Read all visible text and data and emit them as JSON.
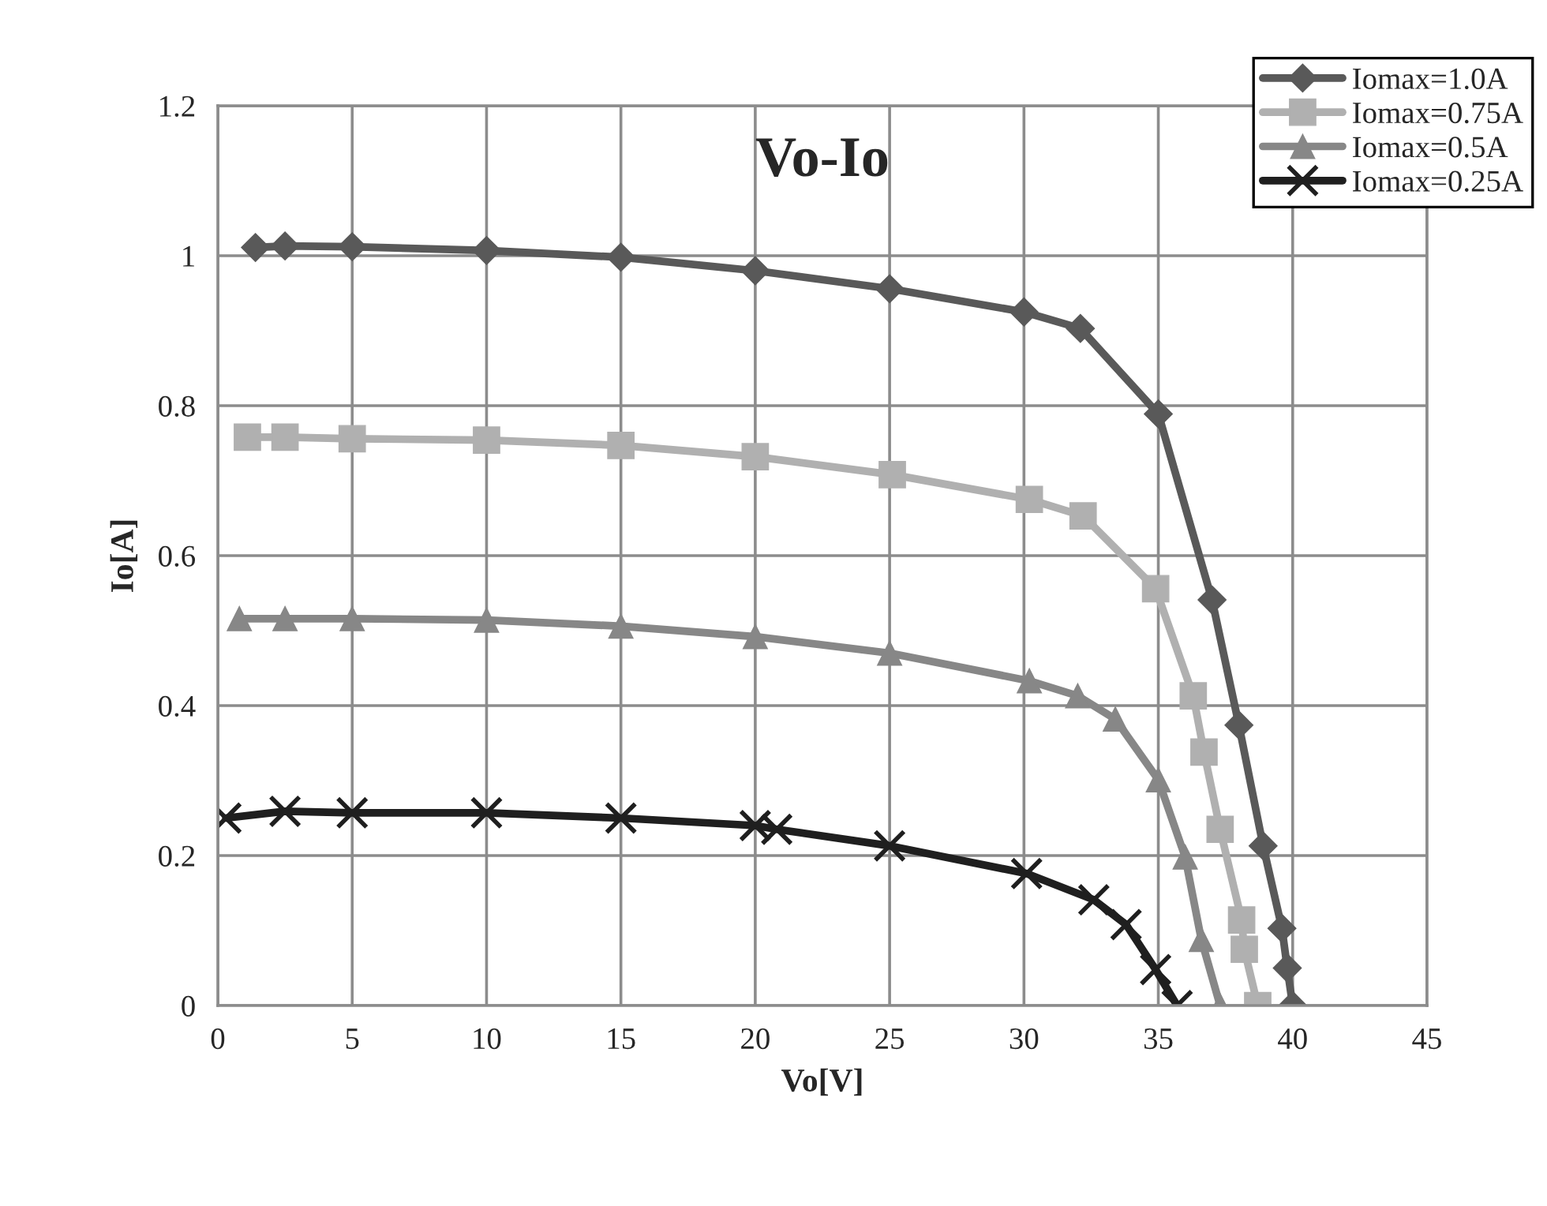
{
  "chart_data": {
    "type": "line",
    "title": "Vo-Io",
    "xlabel": "Vo[V]",
    "ylabel": "Io[A]",
    "xlim": [
      0,
      45
    ],
    "xticks": [
      0,
      5,
      10,
      15,
      20,
      25,
      30,
      35,
      40,
      45
    ],
    "ylim": [
      0,
      1.2
    ],
    "yticks": [
      0,
      0.2,
      0.4,
      0.6,
      0.8,
      1,
      1.2
    ],
    "grid": true,
    "legend": "top right",
    "line_style": "solid",
    "series": [
      {
        "name": "Iomax=1.0A",
        "color": "#595959",
        "marker": "diamond",
        "x": [
          1.4,
          2.5,
          5,
          10,
          15,
          20,
          25,
          30,
          32.1,
          35,
          37.0,
          38.0,
          38.9,
          39.6,
          39.8,
          40.0
        ],
        "values": [
          1.011,
          1.013,
          1.012,
          1.007,
          0.998,
          0.98,
          0.956,
          0.925,
          0.903,
          0.789,
          0.541,
          0.374,
          0.213,
          0.103,
          0.05,
          0
        ]
      },
      {
        "name": "Iomax=0.75A",
        "color": "#b0b0b0",
        "marker": "square",
        "x": [
          1.1,
          2.5,
          5,
          10,
          15,
          20,
          25.1,
          30.2,
          32.2,
          34.9,
          36.3,
          36.7,
          37.3,
          38.1,
          38.2,
          38.7
        ],
        "values": [
          0.758,
          0.758,
          0.756,
          0.754,
          0.747,
          0.732,
          0.708,
          0.675,
          0.653,
          0.556,
          0.413,
          0.338,
          0.235,
          0.114,
          0.075,
          0
        ]
      },
      {
        "name": "Iomax=0.5A",
        "color": "#878787",
        "marker": "triangle",
        "x": [
          0.8,
          2.5,
          5,
          10,
          15,
          20,
          25.0,
          30.2,
          32.0,
          33.4,
          35.0,
          36.0,
          36.6,
          37.3
        ],
        "values": [
          0.516,
          0.516,
          0.516,
          0.514,
          0.506,
          0.492,
          0.47,
          0.433,
          0.413,
          0.382,
          0.301,
          0.198,
          0.088,
          0
        ]
      },
      {
        "name": "Iomax=0.25A",
        "color": "#1f1f1f",
        "marker": "cross",
        "x": [
          0.3,
          2.5,
          5,
          10,
          15,
          20,
          20.8,
          25,
          30.1,
          32.6,
          33.8,
          34.9,
          35.7
        ],
        "values": [
          0.25,
          0.259,
          0.257,
          0.257,
          0.25,
          0.24,
          0.235,
          0.213,
          0.176,
          0.141,
          0.108,
          0.048,
          0
        ]
      }
    ]
  }
}
